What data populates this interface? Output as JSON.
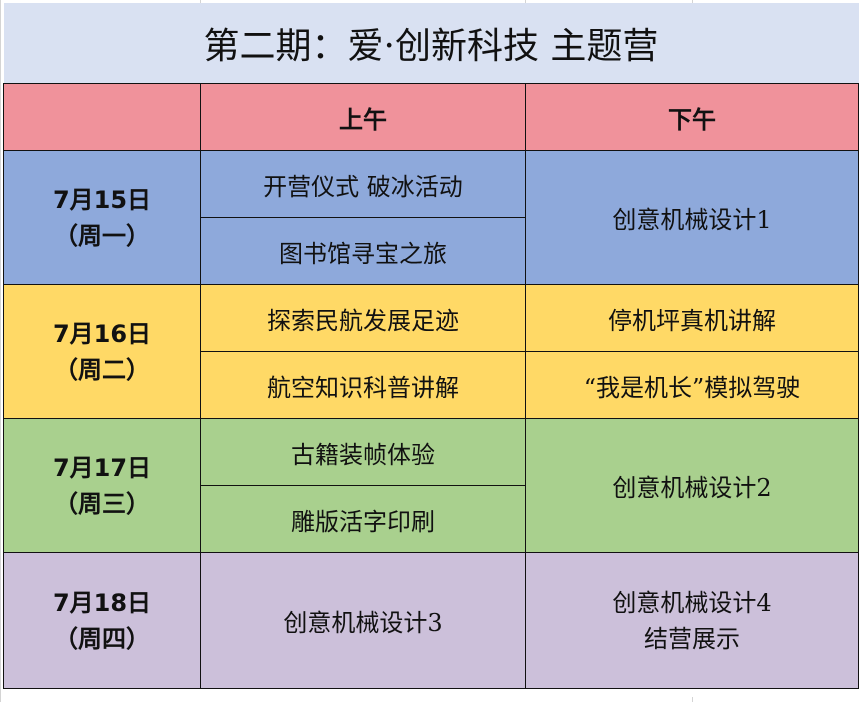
{
  "title": "第二期：爱·创新科技 主题营",
  "header": {
    "morning": "上午",
    "afternoon": "下午"
  },
  "colors": {
    "title_bg": "#D9E1F2",
    "header_bg": "#F0929B",
    "day1": "#8EA9DB",
    "day2": "#FFD966",
    "day3": "#A9D08E",
    "day4": "#CCC0DA"
  },
  "days": [
    {
      "date": "7月15日",
      "weekday": "（周一）",
      "morning": [
        "开营仪式 破冰活动",
        "图书馆寻宝之旅"
      ],
      "afternoon": [
        "创意机械设计1"
      ]
    },
    {
      "date": "7月16日",
      "weekday": "（周二）",
      "morning": [
        "探索民航发展足迹",
        "航空知识科普讲解"
      ],
      "afternoon": [
        "停机坪真机讲解",
        "“我是机长”模拟驾驶"
      ]
    },
    {
      "date": "7月17日",
      "weekday": "（周三）",
      "morning": [
        "古籍装帧体验",
        "雕版活字印刷"
      ],
      "afternoon": [
        "创意机械设计2"
      ]
    },
    {
      "date": "7月18日",
      "weekday": "（周四）",
      "morning": [
        "创意机械设计3"
      ],
      "afternoon": [
        "创意机械设计4",
        "结营展示"
      ]
    }
  ]
}
